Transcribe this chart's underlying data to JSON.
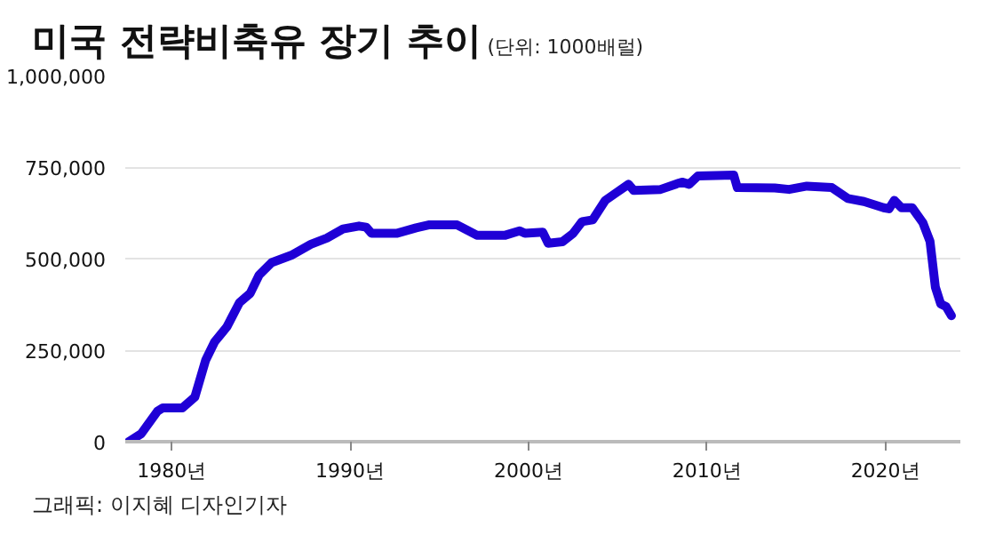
{
  "chart_data": {
    "type": "line",
    "title": "미국 전략비축유 장기 추이",
    "subtitle": "(단위: 1000배럴)",
    "annotations": [
      "그래픽: 이지혜 디자인기자"
    ],
    "x": [
      1977.6,
      1978.3,
      1979.2,
      1979.5,
      1980.6,
      1981.3,
      1981.9,
      1982.4,
      1983.1,
      1983.8,
      1984.4,
      1984.9,
      1985.6,
      1986.7,
      1987.8,
      1988.7,
      1989.6,
      1990.5,
      1990.9,
      1991.2,
      1992.6,
      1993.7,
      1994.4,
      1996.0,
      1997.1,
      1998.7,
      1999.5,
      1999.8,
      2000.8,
      2001.1,
      2001.9,
      2002.5,
      2003.0,
      2003.6,
      2004.3,
      2004.8,
      2005.6,
      2005.9,
      2007.4,
      2008.6,
      2009.0,
      2009.5,
      2011.5,
      2011.7,
      2013.8,
      2014.6,
      2015.6,
      2017.0,
      2017.9,
      2018.8,
      2019.9,
      2020.2,
      2020.5,
      2020.9,
      2021.5,
      2022.1,
      2022.5,
      2022.8,
      2023.1,
      2023.4,
      2023.7
    ],
    "series": [
      {
        "color": "#1f00d6",
        "values": [
          0,
          22000,
          83000,
          92000,
          92000,
          122000,
          222000,
          272000,
          314000,
          380000,
          405000,
          455000,
          489000,
          509000,
          539000,
          556000,
          581000,
          589000,
          586000,
          569000,
          569000,
          584000,
          592000,
          592000,
          564000,
          564000,
          576000,
          569000,
          572000,
          542000,
          546000,
          569000,
          601000,
          606000,
          659000,
          676000,
          703000,
          686000,
          689000,
          709000,
          703000,
          726000,
          728000,
          694000,
          693000,
          689000,
          698000,
          694000,
          664000,
          656000,
          639000,
          636000,
          659000,
          639000,
          639000,
          598000,
          547000,
          422000,
          376000,
          369000,
          344000
        ]
      }
    ],
    "xlim": [
      1977.4,
      2024.2
    ],
    "ylim": [
      0,
      1000000
    ],
    "xticks": [
      {
        "value": 1980,
        "label": "1980년"
      },
      {
        "value": 1990,
        "label": "1990년"
      },
      {
        "value": 2000,
        "label": "2000년"
      },
      {
        "value": 2010,
        "label": "2010년"
      },
      {
        "value": 2020,
        "label": "2020년"
      }
    ],
    "yticks": [
      {
        "value": 0,
        "label": "0"
      },
      {
        "value": 250000,
        "label": "250,000"
      },
      {
        "value": 500000,
        "label": "500,000"
      },
      {
        "value": 750000,
        "label": "750,000"
      },
      {
        "value": 1000000,
        "label": "1,000,000"
      }
    ],
    "grid": "y",
    "marker": "none",
    "line_style": "solid"
  }
}
